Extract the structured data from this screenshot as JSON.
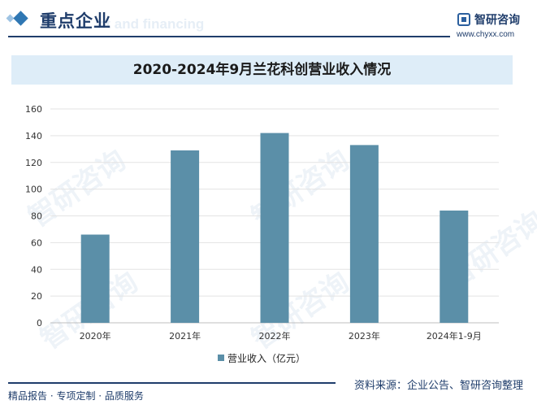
{
  "header": {
    "section_title": "重点企业",
    "section_ghost": "nt and financing",
    "logo_name": "智研咨询",
    "logo_url": "www.chyxx.com"
  },
  "watermark_text": "智研咨询",
  "footer": {
    "left": "精品报告 · 专项定制 · 品质服务",
    "source": "资料来源：企业公告、智研咨询整理"
  },
  "colors": {
    "bar": "#5b8fa8",
    "title_band": "#deedf8",
    "brand": "#1f3d6b"
  },
  "chart_data": {
    "type": "bar",
    "title": "2020-2024年9月兰花科创营业收入情况",
    "categories": [
      "2020年",
      "2021年",
      "2022年",
      "2023年",
      "2024年1-9月"
    ],
    "series": [
      {
        "name": "营业收入（亿元）",
        "values": [
          66,
          129,
          142,
          133,
          84
        ]
      }
    ],
    "ylim": [
      0,
      160
    ],
    "yticks": [
      0,
      20,
      40,
      60,
      80,
      100,
      120,
      140,
      160
    ],
    "grid": true,
    "legend": "bottom"
  }
}
